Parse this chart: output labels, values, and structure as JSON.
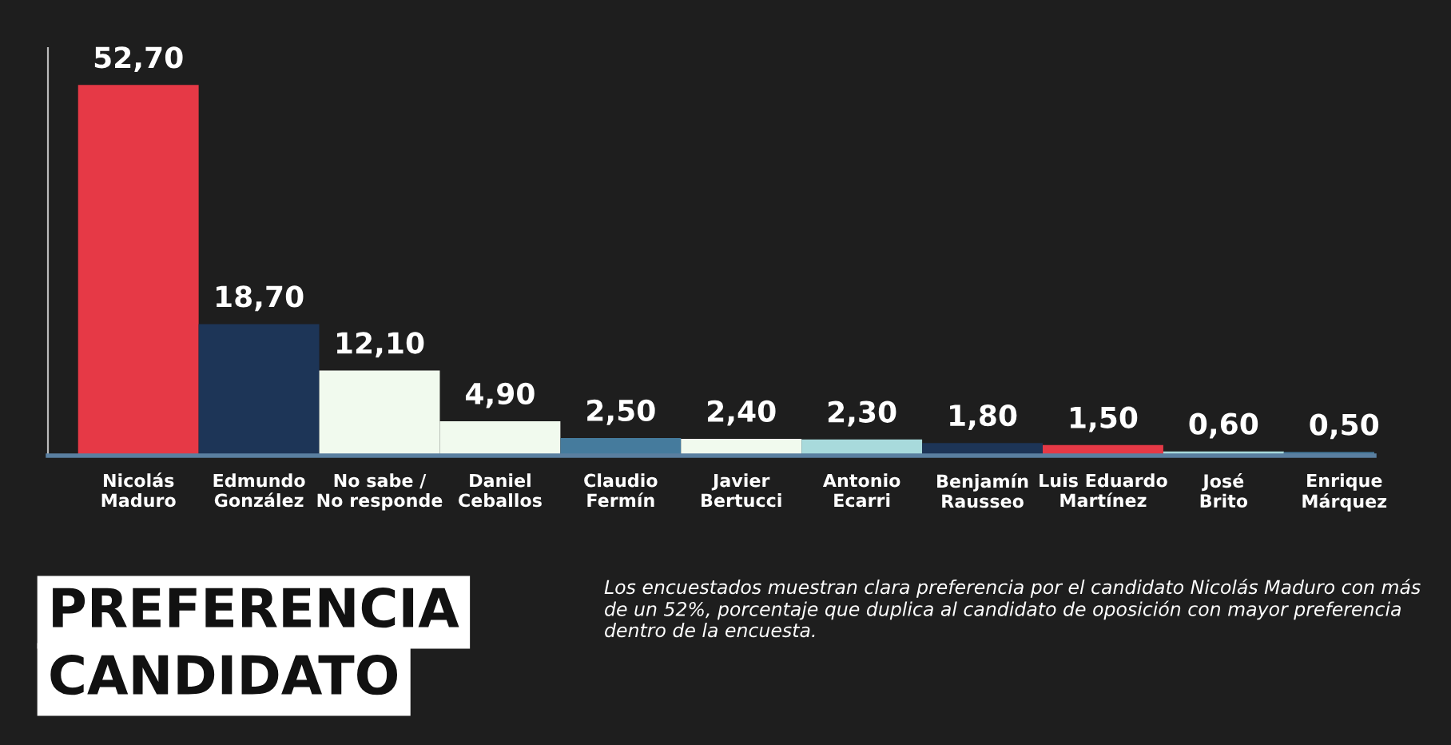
{
  "chart_data": {
    "type": "bar",
    "title": "PREFERENCIA CANDIDATO",
    "categories": [
      "Nicolás\nMaduro",
      "Edmundo\nGonzález",
      "No sabe /\nNo responde",
      "Daniel\nCeballos",
      "Claudio\nFermín",
      "Javier\nBertucci",
      "Antonio\nEcarri",
      "Benjamín\nRausseo",
      "Luis Eduardo\nMartínez",
      "José\nBrito",
      "Enrique\nMárquez"
    ],
    "values": [
      52.7,
      18.7,
      12.1,
      4.9,
      2.5,
      2.4,
      2.3,
      1.8,
      1.5,
      0.6,
      0.5
    ],
    "colors": [
      "#e63946",
      "#1d3557",
      "#f1faee",
      "#f1faee",
      "#457b9d",
      "#f1faee",
      "#a8dadc",
      "#1d3557",
      "#e63946",
      "#a8dadc",
      "#457b9d"
    ],
    "value_labels": [
      "52,70",
      "18,70",
      "12,10",
      "4,90",
      "2,50",
      "2,40",
      "2,30",
      "1,80",
      "1,50",
      "0,60",
      "0,50"
    ],
    "tick_labels": "x",
    "grid": false,
    "legend": false,
    "annotations": [
      "Los encuestados muestran clara preferencia por el candidato Nicolás Maduro con más de un 52%, porcentaje que duplica al candidato de oposición con mayor preferencia dentro de la encuesta."
    ]
  }
}
